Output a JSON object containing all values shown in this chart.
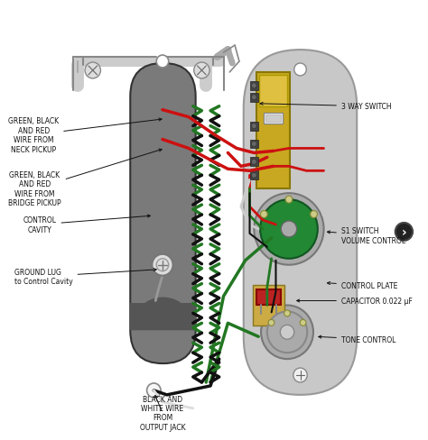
{
  "bg_color": "#ffffff",
  "fig_width": 4.74,
  "fig_height": 4.89,
  "dpi": 100,
  "labels": {
    "neck_pickup": "GREEN, BLACK\nAND RED\nWIRE FROM\nNECK PICKUP",
    "bridge_pickup": "GREEN, BLACK\nAND RED\nWIRE FROM\nBRIDGE PICKUP",
    "control_cavity": "CONTROL\nCAVITY",
    "ground_lug": "GROUND LUG\nto Control Cavity",
    "output_jack": "BLACK AND\nWHITE WIRE\nFROM\nOUTPUT JACK",
    "three_way": "3 WAY SWITCH",
    "s1_switch": "S1 SWITCH\nVOLUME CONTROL",
    "control_plate": "CONTROL PLATE",
    "capacitor": "CAPACITOR 0.022 μF",
    "tone_control": "TONE CONTROL"
  },
  "colors": {
    "bg": "#ffffff",
    "cavity_fill": "#7a7a7a",
    "cavity_inner": "#666666",
    "plate_fill": "#c8c8c8",
    "plate_edge": "#999999",
    "wire_red": "#cc1111",
    "wire_green": "#115511",
    "wire_green2": "#227722",
    "wire_black": "#111111",
    "switch_gold": "#c8a820",
    "switch_gold2": "#e0c040",
    "pot_green": "#228833",
    "pot_rim": "#aaaaaa",
    "cap_red": "#bb2222",
    "text_color": "#111111",
    "outline": "#333333",
    "screw_light": "#dddddd",
    "screw_dark": "#888888",
    "white_wire": "#dddddd",
    "bracket": "#cccccc"
  }
}
